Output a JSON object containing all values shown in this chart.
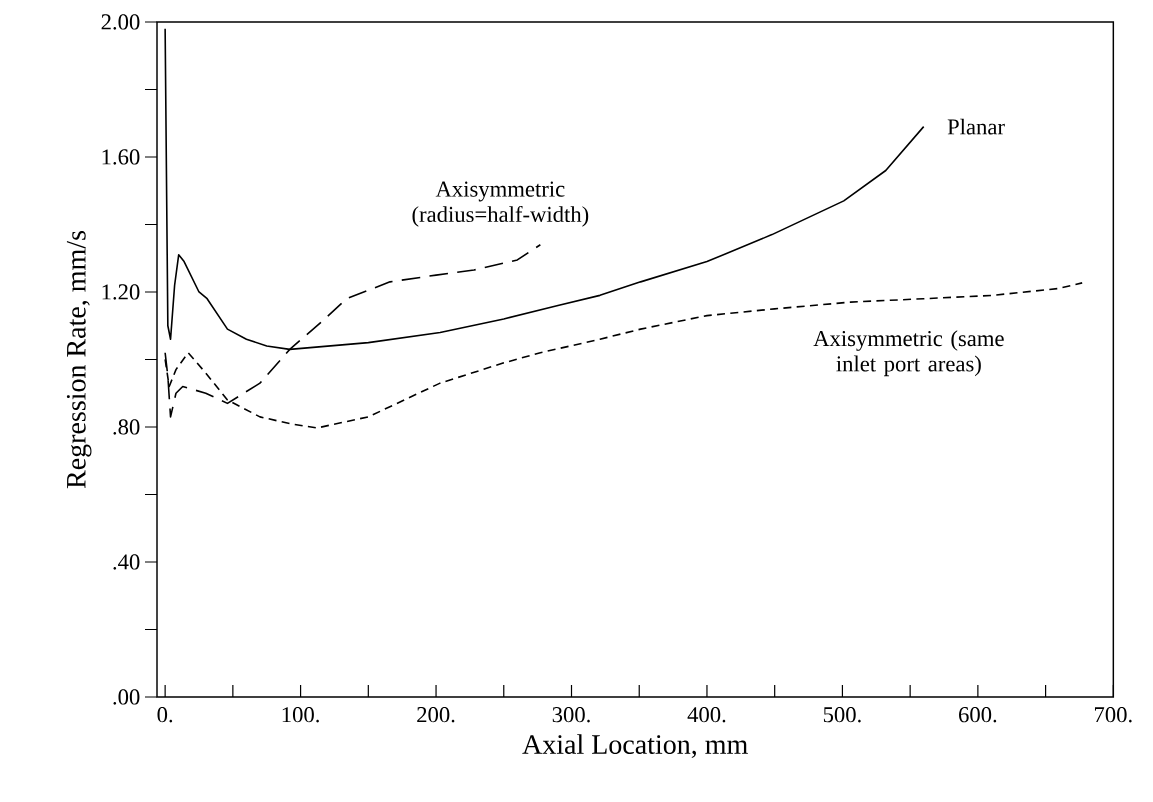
{
  "chart_data": {
    "type": "line",
    "xlabel": "Axial Location, mm",
    "ylabel": "Regression Rate, mm/s",
    "xlim": [
      -6,
      700
    ],
    "ylim": [
      0,
      2
    ],
    "xticks": [
      {
        "value": 0,
        "label": "0."
      },
      {
        "value": 50,
        "label": null
      },
      {
        "value": 100,
        "label": "100."
      },
      {
        "value": 150,
        "label": null
      },
      {
        "value": 200,
        "label": "200."
      },
      {
        "value": 250,
        "label": null
      },
      {
        "value": 300,
        "label": "300."
      },
      {
        "value": 350,
        "label": null
      },
      {
        "value": 400,
        "label": "400."
      },
      {
        "value": 450,
        "label": null
      },
      {
        "value": 500,
        "label": "500."
      },
      {
        "value": 550,
        "label": null
      },
      {
        "value": 600,
        "label": "600."
      },
      {
        "value": 650,
        "label": null
      },
      {
        "value": 700,
        "label": "700."
      }
    ],
    "yticks": [
      {
        "value": 0,
        "label": ".00"
      },
      {
        "value": 0.2,
        "label": null
      },
      {
        "value": 0.4,
        "label": ".40"
      },
      {
        "value": 0.6,
        "label": null
      },
      {
        "value": 0.8,
        "label": ".80"
      },
      {
        "value": 1.0,
        "label": null
      },
      {
        "value": 1.2,
        "label": "1.20"
      },
      {
        "value": 1.4,
        "label": null
      },
      {
        "value": 1.6,
        "label": "1.60"
      },
      {
        "value": 1.8,
        "label": null
      },
      {
        "value": 2.0,
        "label": "2.00"
      }
    ],
    "grid": false,
    "marker": "none",
    "series": [
      {
        "name": "Planar",
        "color": "#000000",
        "line_style": "solid",
        "x": [
          0,
          2,
          4,
          7,
          10,
          14,
          25,
          31,
          46,
          60,
          75,
          92,
          150,
          203,
          250,
          290,
          321,
          351,
          400,
          448,
          501,
          532,
          560
        ],
        "values": [
          1.98,
          1.1,
          1.06,
          1.22,
          1.31,
          1.29,
          1.2,
          1.18,
          1.09,
          1.06,
          1.04,
          1.03,
          1.05,
          1.08,
          1.12,
          1.16,
          1.19,
          1.23,
          1.29,
          1.37,
          1.47,
          1.56,
          1.69
        ]
      },
      {
        "name": "Axisymmetric (radius=half-width)",
        "color": "#000000",
        "line_style": "dashed",
        "x": [
          0,
          2,
          4,
          8,
          13,
          30,
          46,
          70,
          92,
          115,
          134,
          166,
          200,
          228,
          260,
          277
        ],
        "values": [
          1.02,
          0.95,
          0.83,
          0.9,
          0.92,
          0.9,
          0.87,
          0.93,
          1.03,
          1.11,
          1.18,
          1.23,
          1.25,
          1.265,
          1.295,
          1.34
        ]
      },
      {
        "name": "Axisymmetric (same inlet port areas)",
        "color": "#000000",
        "line_style": "dashed",
        "x": [
          0,
          3,
          8,
          17,
          30,
          46,
          70,
          92,
          112,
          150,
          203,
          250,
          277,
          321,
          351,
          400,
          450,
          506,
          560,
          611,
          659,
          677
        ],
        "values": [
          1.0,
          0.92,
          0.97,
          1.02,
          0.96,
          0.88,
          0.83,
          0.81,
          0.797,
          0.83,
          0.93,
          0.99,
          1.02,
          1.06,
          1.09,
          1.13,
          1.15,
          1.17,
          1.18,
          1.19,
          1.21,
          1.227
        ]
      }
    ]
  }
}
